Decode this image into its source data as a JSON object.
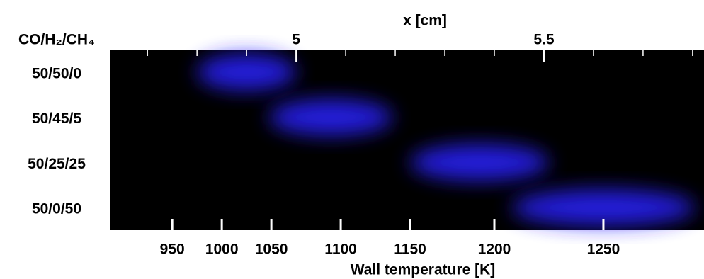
{
  "chart_data": {
    "type": "flame_image",
    "x_label": "x [cm]",
    "xlim": [
      4.624,
      5.823
    ],
    "xticks": [
      5.0,
      5.5
    ],
    "xminor_ticks": [
      4.7,
      4.8,
      4.9,
      5.1,
      5.2,
      5.3,
      5.4,
      5.6,
      5.7,
      5.8
    ],
    "bottom_label": "Wall temperature [K]",
    "temperature_ticks": [
      {
        "temperature": 950,
        "x": 4.75
      },
      {
        "temperature": 1000,
        "x": 4.85
      },
      {
        "temperature": 1050,
        "x": 4.95
      },
      {
        "temperature": 1100,
        "x": 5.09
      },
      {
        "temperature": 1150,
        "x": 5.23
      },
      {
        "temperature": 1200,
        "x": 5.4
      },
      {
        "temperature": 1250,
        "x": 5.62
      }
    ],
    "row_header": "CO/H₂/CH₄",
    "color": "#2a22ff",
    "rows": [
      {
        "name": "50/50/0",
        "center": 4.9,
        "width": 0.2
      },
      {
        "name": "50/45/5",
        "center": 5.07,
        "width": 0.25
      },
      {
        "name": "50/25/25",
        "center": 5.37,
        "width": 0.28
      },
      {
        "name": "50/0/50",
        "center": 5.62,
        "width": 0.37
      }
    ]
  }
}
